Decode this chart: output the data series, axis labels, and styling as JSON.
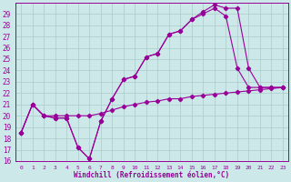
{
  "xlabel": "Windchill (Refroidissement éolien,°C)",
  "bg_color": "#cce8e8",
  "grid_color": "#aacccc",
  "line_color": "#990099",
  "xlim": [
    -0.5,
    23.5
  ],
  "ylim": [
    16,
    30
  ],
  "yticks": [
    16,
    17,
    18,
    19,
    20,
    21,
    22,
    23,
    24,
    25,
    26,
    27,
    28,
    29
  ],
  "xticks": [
    0,
    1,
    2,
    3,
    4,
    5,
    6,
    7,
    8,
    9,
    10,
    11,
    12,
    13,
    14,
    15,
    16,
    17,
    18,
    19,
    20,
    21,
    22,
    23
  ],
  "line1_x": [
    0,
    1,
    2,
    3,
    4,
    5,
    6,
    7,
    8,
    9,
    10,
    11,
    12,
    13,
    14,
    15,
    16,
    17,
    18,
    19,
    20,
    21,
    22,
    23
  ],
  "line1_y": [
    18.5,
    21.0,
    20.0,
    20.0,
    20.0,
    20.0,
    20.0,
    20.2,
    20.5,
    20.8,
    21.0,
    21.2,
    21.3,
    21.5,
    21.5,
    21.7,
    21.8,
    21.9,
    22.0,
    22.1,
    22.2,
    22.3,
    22.4,
    22.5
  ],
  "line2_x": [
    0,
    1,
    2,
    3,
    4,
    5,
    6,
    7,
    8,
    9,
    10,
    11,
    12,
    13,
    14,
    15,
    16,
    17,
    18,
    19,
    20,
    21,
    22,
    23
  ],
  "line2_y": [
    18.5,
    21.0,
    20.0,
    19.8,
    19.8,
    17.2,
    16.2,
    19.5,
    21.5,
    23.2,
    23.5,
    25.2,
    25.5,
    27.2,
    27.5,
    28.5,
    29.0,
    29.5,
    28.8,
    24.2,
    22.5,
    22.5,
    22.5,
    22.5
  ],
  "line3_x": [
    0,
    1,
    2,
    3,
    4,
    5,
    6,
    7,
    8,
    9,
    10,
    11,
    12,
    13,
    14,
    15,
    16,
    17,
    18,
    19,
    20,
    21,
    22,
    23
  ],
  "line3_y": [
    18.5,
    21.0,
    20.0,
    19.8,
    19.8,
    17.2,
    16.2,
    19.5,
    21.5,
    23.2,
    23.5,
    25.2,
    25.5,
    27.2,
    27.5,
    28.5,
    29.2,
    29.8,
    29.5,
    29.5,
    24.2,
    22.5,
    22.5,
    22.5
  ]
}
